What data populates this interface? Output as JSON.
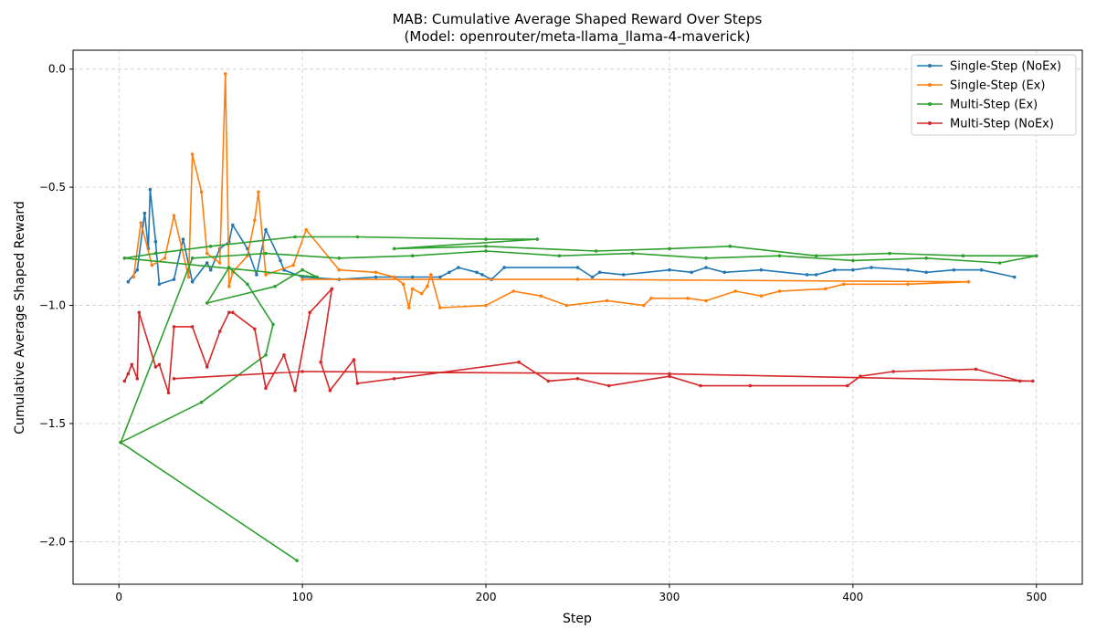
{
  "chart_data": {
    "type": "line",
    "title": "MAB: Cumulative Average Shaped Reward Over Steps",
    "subtitle": "(Model: openrouter/meta-llama_llama-4-maverick)",
    "xlabel": "Step",
    "ylabel": "Cumulative Average Shaped Reward",
    "xlim": [
      -25,
      525
    ],
    "ylim": [
      -2.18,
      0.08
    ],
    "xticks": [
      0,
      100,
      200,
      300,
      400,
      500
    ],
    "yticks": [
      0.0,
      -0.5,
      -1.0,
      -1.5,
      -2.0
    ],
    "ytick_labels": [
      "0.0",
      "−0.5",
      "−1.0",
      "−1.5",
      "−2.0"
    ],
    "grid": true,
    "legend_position": "top-right",
    "series": [
      {
        "name": "Single-Step (NoEx)",
        "color": "#1f77b4",
        "points": [
          [
            5,
            -0.9
          ],
          [
            10,
            -0.85
          ],
          [
            14,
            -0.61
          ],
          [
            16,
            -0.76
          ],
          [
            17,
            -0.51
          ],
          [
            20,
            -0.73
          ],
          [
            22,
            -0.91
          ],
          [
            30,
            -0.89
          ],
          [
            35,
            -0.72
          ],
          [
            40,
            -0.9
          ],
          [
            48,
            -0.82
          ],
          [
            50,
            -0.85
          ],
          [
            55,
            -0.76
          ],
          [
            60,
            -0.73
          ],
          [
            62,
            -0.66
          ],
          [
            70,
            -0.76
          ],
          [
            75,
            -0.87
          ],
          [
            80,
            -0.68
          ],
          [
            88,
            -0.81
          ],
          [
            90,
            -0.85
          ],
          [
            100,
            -0.88
          ],
          [
            120,
            -0.89
          ],
          [
            140,
            -0.88
          ],
          [
            160,
            -0.88
          ],
          [
            175,
            -0.88
          ],
          [
            180,
            -0.86
          ],
          [
            185,
            -0.84
          ],
          [
            195,
            -0.86
          ],
          [
            198,
            -0.87
          ],
          [
            203,
            -0.89
          ],
          [
            210,
            -0.84
          ],
          [
            250,
            -0.84
          ],
          [
            258,
            -0.88
          ],
          [
            262,
            -0.86
          ],
          [
            275,
            -0.87
          ],
          [
            300,
            -0.85
          ],
          [
            312,
            -0.86
          ],
          [
            320,
            -0.84
          ],
          [
            330,
            -0.86
          ],
          [
            350,
            -0.85
          ],
          [
            375,
            -0.87
          ],
          [
            380,
            -0.87
          ],
          [
            390,
            -0.85
          ],
          [
            400,
            -0.85
          ],
          [
            410,
            -0.84
          ],
          [
            430,
            -0.85
          ],
          [
            440,
            -0.86
          ],
          [
            455,
            -0.85
          ],
          [
            470,
            -0.85
          ],
          [
            488,
            -0.88
          ]
        ]
      },
      {
        "name": "Single-Step (Ex)",
        "color": "#ff7f0e",
        "points": [
          [
            8,
            -0.88
          ],
          [
            12,
            -0.65
          ],
          [
            18,
            -0.83
          ],
          [
            25,
            -0.8
          ],
          [
            30,
            -0.62
          ],
          [
            38,
            -0.88
          ],
          [
            40,
            -0.36
          ],
          [
            45,
            -0.52
          ],
          [
            48,
            -0.78
          ],
          [
            55,
            -0.82
          ],
          [
            58,
            -0.02
          ],
          [
            60,
            -0.92
          ],
          [
            62,
            -0.86
          ],
          [
            70,
            -0.79
          ],
          [
            74,
            -0.64
          ],
          [
            76,
            -0.52
          ],
          [
            80,
            -0.87
          ],
          [
            95,
            -0.83
          ],
          [
            102,
            -0.68
          ],
          [
            120,
            -0.85
          ],
          [
            140,
            -0.86
          ],
          [
            150,
            -0.88
          ],
          [
            155,
            -0.91
          ],
          [
            158,
            -1.01
          ],
          [
            160,
            -0.93
          ],
          [
            165,
            -0.95
          ],
          [
            168,
            -0.92
          ],
          [
            170,
            -0.87
          ],
          [
            175,
            -1.01
          ],
          [
            200,
            -1.0
          ],
          [
            215,
            -0.94
          ],
          [
            230,
            -0.96
          ],
          [
            244,
            -1.0
          ],
          [
            266,
            -0.98
          ],
          [
            286,
            -1.0
          ],
          [
            290,
            -0.97
          ],
          [
            310,
            -0.97
          ],
          [
            320,
            -0.98
          ],
          [
            336,
            -0.94
          ],
          [
            350,
            -0.96
          ],
          [
            360,
            -0.94
          ],
          [
            385,
            -0.93
          ],
          [
            395,
            -0.91
          ],
          [
            430,
            -0.91
          ],
          [
            463,
            -0.9
          ],
          [
            250,
            -0.89
          ],
          [
            100,
            -0.89
          ]
        ]
      },
      {
        "name": "Multi-Step (Ex)",
        "color": "#2ca02c",
        "points": [
          [
            1,
            -1.58
          ],
          [
            45,
            -1.41
          ],
          [
            80,
            -1.21
          ],
          [
            84,
            -1.08
          ],
          [
            70,
            -0.91
          ],
          [
            60,
            -0.84
          ],
          [
            48,
            -0.99
          ],
          [
            85,
            -0.92
          ],
          [
            100,
            -0.85
          ],
          [
            108,
            -0.88
          ],
          [
            3,
            -0.8
          ],
          [
            20,
            -0.78
          ],
          [
            50,
            -0.75
          ],
          [
            96,
            -0.71
          ],
          [
            130,
            -0.71
          ],
          [
            200,
            -0.72
          ],
          [
            228,
            -0.72
          ],
          [
            150,
            -0.76
          ],
          [
            200,
            -0.75
          ],
          [
            260,
            -0.77
          ],
          [
            300,
            -0.76
          ],
          [
            333,
            -0.75
          ],
          [
            380,
            -0.79
          ],
          [
            420,
            -0.78
          ],
          [
            460,
            -0.79
          ],
          [
            500,
            -0.79
          ],
          [
            480,
            -0.82
          ],
          [
            440,
            -0.8
          ],
          [
            400,
            -0.81
          ],
          [
            360,
            -0.79
          ],
          [
            320,
            -0.8
          ],
          [
            280,
            -0.78
          ],
          [
            240,
            -0.79
          ],
          [
            200,
            -0.77
          ],
          [
            160,
            -0.79
          ],
          [
            120,
            -0.8
          ],
          [
            80,
            -0.78
          ],
          [
            40,
            -0.8
          ],
          [
            1,
            -1.58
          ],
          [
            97,
            -2.08
          ]
        ]
      },
      {
        "name": "Multi-Step (NoEx)",
        "color": "#d62728",
        "points": [
          [
            3,
            -1.32
          ],
          [
            5,
            -1.29
          ],
          [
            7,
            -1.25
          ],
          [
            10,
            -1.31
          ],
          [
            11,
            -1.03
          ],
          [
            20,
            -1.26
          ],
          [
            22,
            -1.25
          ],
          [
            27,
            -1.37
          ],
          [
            30,
            -1.09
          ],
          [
            40,
            -1.09
          ],
          [
            48,
            -1.26
          ],
          [
            55,
            -1.11
          ],
          [
            60,
            -1.03
          ],
          [
            62,
            -1.03
          ],
          [
            74,
            -1.1
          ],
          [
            80,
            -1.35
          ],
          [
            90,
            -1.21
          ],
          [
            96,
            -1.36
          ],
          [
            104,
            -1.03
          ],
          [
            116,
            -0.93
          ],
          [
            110,
            -1.24
          ],
          [
            115,
            -1.36
          ],
          [
            128,
            -1.23
          ],
          [
            130,
            -1.33
          ],
          [
            150,
            -1.31
          ],
          [
            218,
            -1.24
          ],
          [
            234,
            -1.32
          ],
          [
            250,
            -1.31
          ],
          [
            267,
            -1.34
          ],
          [
            300,
            -1.3
          ],
          [
            317,
            -1.34
          ],
          [
            344,
            -1.34
          ],
          [
            397,
            -1.34
          ],
          [
            404,
            -1.3
          ],
          [
            422,
            -1.28
          ],
          [
            467,
            -1.27
          ],
          [
            491,
            -1.32
          ],
          [
            498,
            -1.32
          ],
          [
            300,
            -1.29
          ],
          [
            100,
            -1.28
          ],
          [
            30,
            -1.31
          ]
        ]
      }
    ]
  }
}
